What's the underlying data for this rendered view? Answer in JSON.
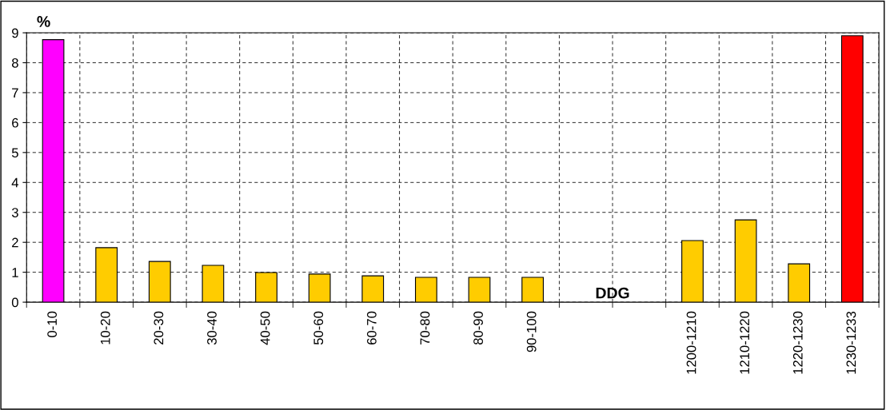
{
  "chart_data": {
    "type": "bar",
    "ylabel": "%",
    "categories": [
      "0-10",
      "10-20",
      "20-30",
      "30-40",
      "40-50",
      "50-60",
      "60-70",
      "70-80",
      "80-90",
      "90-100",
      null,
      null,
      "1200-1210",
      "1210-1220",
      "1220-1230",
      "1230-1233"
    ],
    "values": [
      8.77,
      1.82,
      1.36,
      1.23,
      0.99,
      0.94,
      0.88,
      0.83,
      0.83,
      0.83,
      null,
      null,
      2.06,
      2.75,
      1.28,
      8.9
    ],
    "colors": [
      "#ff00ff",
      "#ffcc00",
      "#ffcc00",
      "#ffcc00",
      "#ffcc00",
      "#ffcc00",
      "#ffcc00",
      "#ffcc00",
      "#ffcc00",
      "#ffcc00",
      "#ffcc00",
      "#ffcc00",
      "#ffcc00",
      "#ffcc00",
      "#ffcc00",
      "#ff0000"
    ],
    "annotations": [
      "DDG"
    ],
    "ylim": [
      0,
      9
    ],
    "yticks": [
      0,
      1,
      2,
      3,
      4,
      5,
      6,
      7,
      8,
      9
    ],
    "grid": true
  }
}
